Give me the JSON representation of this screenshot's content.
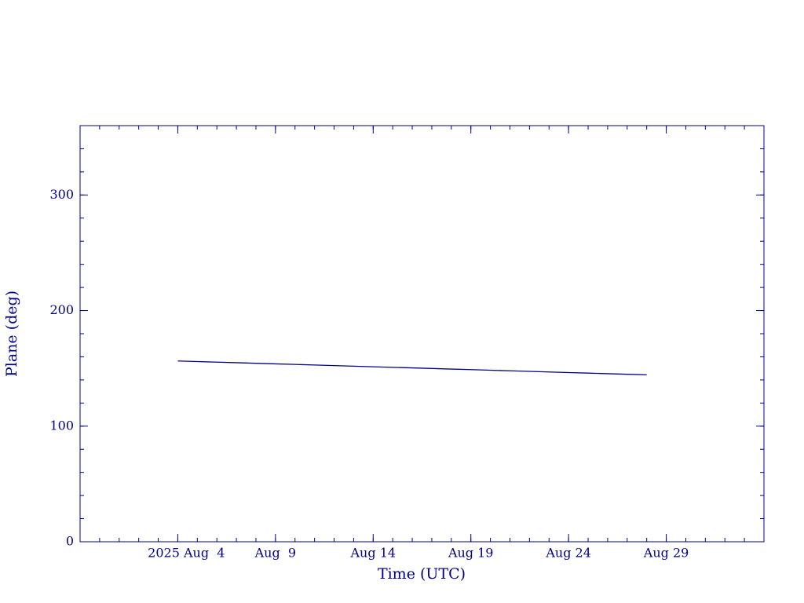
{
  "chart_data": {
    "type": "line",
    "x_label": "Time (UTC)",
    "y_label": "Plane (deg)",
    "xlim": [
      "2025-07-30",
      "2025-09-03"
    ],
    "xticks": [
      {
        "value": "2025-08-04",
        "label": "2025 Aug  4"
      },
      {
        "value": "2025-08-09",
        "label": "Aug  9"
      },
      {
        "value": "2025-08-14",
        "label": "Aug 14"
      },
      {
        "value": "2025-08-19",
        "label": "Aug 19"
      },
      {
        "value": "2025-08-24",
        "label": "Aug 24"
      },
      {
        "value": "2025-08-29",
        "label": "Aug 29"
      }
    ],
    "ylim": [
      0,
      360
    ],
    "yticks": [
      0,
      100,
      200,
      300
    ],
    "color": "#00008b",
    "x": [
      "2025-08-04",
      "2025-08-05",
      "2025-08-06",
      "2025-08-07",
      "2025-08-08",
      "2025-08-09",
      "2025-08-10",
      "2025-08-11",
      "2025-08-12",
      "2025-08-13",
      "2025-08-14",
      "2025-08-15",
      "2025-08-16",
      "2025-08-17",
      "2025-08-18",
      "2025-08-19",
      "2025-08-20",
      "2025-08-21",
      "2025-08-22",
      "2025-08-23",
      "2025-08-24",
      "2025-08-25",
      "2025-08-26",
      "2025-08-27",
      "2025-08-28"
    ],
    "values": [
      156.4,
      155.9,
      155.4,
      154.9,
      154.4,
      153.9,
      153.4,
      152.9,
      152.4,
      151.9,
      151.4,
      150.9,
      150.4,
      149.9,
      149.4,
      148.9,
      148.4,
      147.9,
      147.4,
      146.9,
      146.4,
      145.9,
      145.4,
      144.9,
      144.4
    ]
  }
}
